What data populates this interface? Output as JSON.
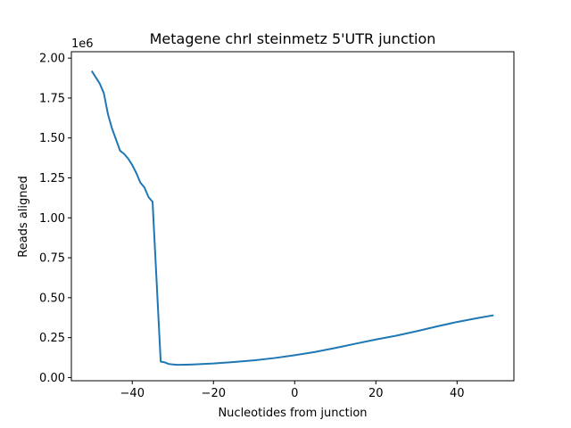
{
  "chart_data": {
    "type": "line",
    "title": "Metagene chrI steinmetz 5'UTR junction",
    "xlabel": "Nucleotides from junction",
    "ylabel": "Reads aligned",
    "y_scale_label": "1e6",
    "xlim": [
      -55,
      54
    ],
    "ylim": [
      -0.02,
      2.04
    ],
    "x_ticks": [
      -40,
      -20,
      0,
      20,
      40
    ],
    "x_tick_labels": [
      "−40",
      "−20",
      "0",
      "20",
      "40"
    ],
    "y_ticks": [
      0.0,
      0.25,
      0.5,
      0.75,
      1.0,
      1.25,
      1.5,
      1.75,
      2.0
    ],
    "y_tick_labels": [
      "0.00",
      "0.25",
      "0.50",
      "0.75",
      "1.00",
      "1.25",
      "1.50",
      "1.75",
      "2.00"
    ],
    "grid": false,
    "series": [
      {
        "color": "#1f77b4",
        "points": [
          [
            -50,
            1.92
          ],
          [
            -49,
            1.88
          ],
          [
            -48,
            1.84
          ],
          [
            -47,
            1.78
          ],
          [
            -46,
            1.65
          ],
          [
            -45,
            1.56
          ],
          [
            -44,
            1.49
          ],
          [
            -43,
            1.42
          ],
          [
            -42,
            1.4
          ],
          [
            -41,
            1.37
          ],
          [
            -40,
            1.33
          ],
          [
            -39,
            1.28
          ],
          [
            -38,
            1.22
          ],
          [
            -37,
            1.19
          ],
          [
            -36,
            1.13
          ],
          [
            -35,
            1.1
          ],
          [
            -34,
            0.6
          ],
          [
            -33,
            0.1
          ],
          [
            -32,
            0.095
          ],
          [
            -31,
            0.085
          ],
          [
            -30,
            0.082
          ],
          [
            -29,
            0.08
          ],
          [
            -28,
            0.08
          ],
          [
            -25,
            0.082
          ],
          [
            -20,
            0.088
          ],
          [
            -15,
            0.097
          ],
          [
            -10,
            0.108
          ],
          [
            -5,
            0.122
          ],
          [
            0,
            0.14
          ],
          [
            5,
            0.16
          ],
          [
            10,
            0.185
          ],
          [
            15,
            0.212
          ],
          [
            20,
            0.238
          ],
          [
            25,
            0.262
          ],
          [
            30,
            0.29
          ],
          [
            35,
            0.32
          ],
          [
            40,
            0.348
          ],
          [
            45,
            0.372
          ],
          [
            49,
            0.39
          ]
        ]
      }
    ]
  }
}
